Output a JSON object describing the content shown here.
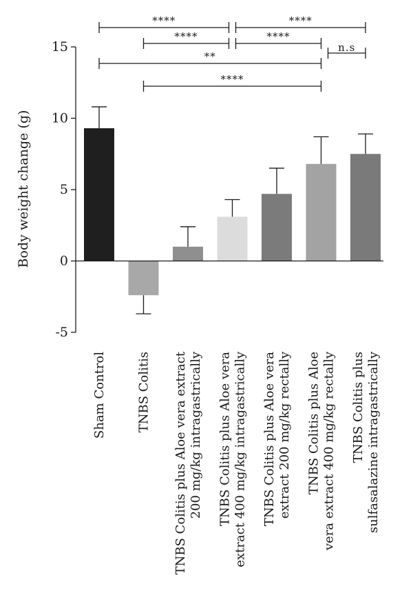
{
  "chart_data": {
    "type": "bar",
    "ylabel": "Body weight change (g)",
    "xlabel": "",
    "ylim": [
      -5,
      15
    ],
    "yticks": [
      -5,
      0,
      5,
      10,
      15
    ],
    "grid": false,
    "categories": [
      {
        "lines": [
          "Sham Control"
        ],
        "value": 9.3,
        "error": 1.5,
        "color": "#1f1f1f"
      },
      {
        "lines": [
          "TNBS Colitis"
        ],
        "value": -2.4,
        "error": 1.3,
        "color": "#a8a8a8"
      },
      {
        "lines": [
          "TNBS Colitis plus Aloe vera extract",
          "200 mg/kg intragastrically"
        ],
        "value": 1.0,
        "error": 1.4,
        "color": "#8f8f8f"
      },
      {
        "lines": [
          "TNBS Colitis plus Aloe vera",
          "extract 400 mg/kg intragastrically"
        ],
        "value": 3.1,
        "error": 1.2,
        "color": "#dcdcdc"
      },
      {
        "lines": [
          "TNBS Colitis plus Aloe vera",
          "extract 200 mg/kg rectally"
        ],
        "value": 4.7,
        "error": 1.8,
        "color": "#7b7b7b"
      },
      {
        "lines": [
          "TNBS Colitis plus Aloe",
          "vera extract 400 mg/kg rectally"
        ],
        "value": 6.8,
        "error": 1.9,
        "color": "#a3a3a3"
      },
      {
        "lines": [
          "TNBS Colitis plus",
          "sulfasalazine intragastrically"
        ],
        "value": 7.5,
        "error": 1.4,
        "color": "#7a7a7a"
      }
    ],
    "significance": [
      {
        "from": 0,
        "to": 3,
        "label": "****",
        "level": 0
      },
      {
        "from": 3,
        "to": 6,
        "label": "****",
        "level": 0
      },
      {
        "from": 1,
        "to": 3,
        "label": "****",
        "level": 1
      },
      {
        "from": 3,
        "to": 5,
        "label": "****",
        "level": 1
      },
      {
        "from": 5,
        "to": 6,
        "label": "n.s",
        "level": 2
      },
      {
        "from": 0,
        "to": 5,
        "label": "**",
        "level": 3
      },
      {
        "from": 1,
        "to": 5,
        "label": "****",
        "level": 4
      }
    ]
  }
}
